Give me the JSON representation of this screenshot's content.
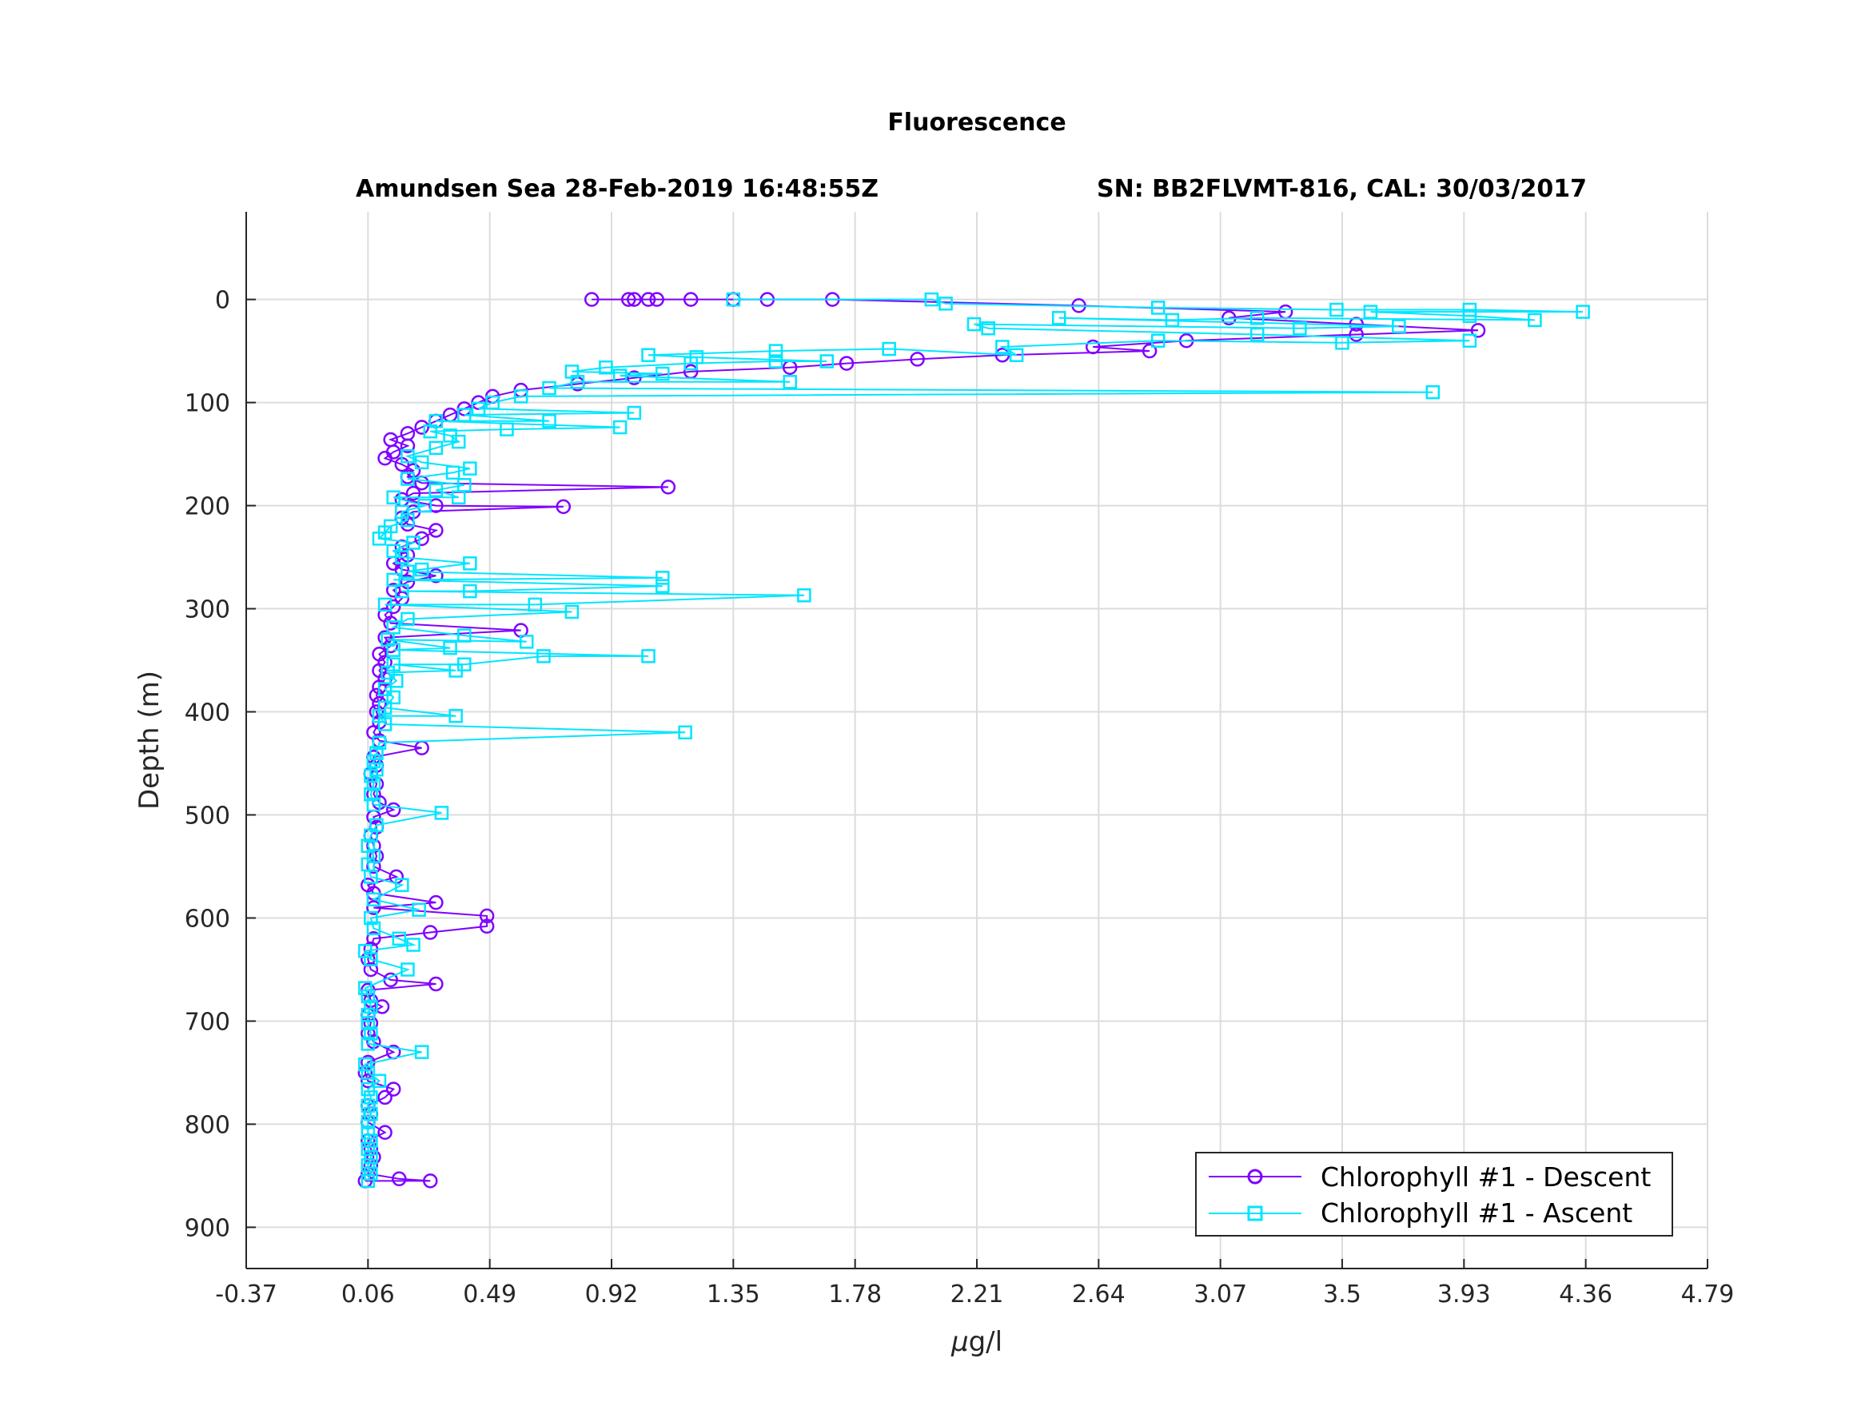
{
  "chart_data": {
    "type": "line",
    "title": "Fluorescence",
    "subtitle_left": "Amundsen Sea 28-Feb-2019 16:48:55Z",
    "subtitle_right": "SN: BB2FLVMT-816, CAL: 30/03/2017",
    "xlabel_prefix": "μ",
    "xlabel_rest": "g/l",
    "ylabel": "Depth (m)",
    "xlim": [
      -0.37,
      4.79
    ],
    "ylim": [
      -85,
      940
    ],
    "y_reversed": true,
    "x_ticks": [
      "-0.37",
      "0.06",
      "0.49",
      "0.92",
      "1.35",
      "1.78",
      "2.21",
      "2.64",
      "3.07",
      "3.5",
      "3.93",
      "4.36",
      "4.79"
    ],
    "y_ticks": [
      "0",
      "100",
      "200",
      "300",
      "400",
      "500",
      "600",
      "700",
      "800",
      "900"
    ],
    "grid": true,
    "legend_position": "bottom-right",
    "series": [
      {
        "name": "Chlorophyll #1 - Descent",
        "color": "#8000ff",
        "marker": "circle",
        "points": [
          [
            0.85,
            0
          ],
          [
            0.98,
            0
          ],
          [
            1.0,
            0
          ],
          [
            1.05,
            0
          ],
          [
            1.08,
            0
          ],
          [
            1.2,
            0
          ],
          [
            1.35,
            0
          ],
          [
            1.47,
            0
          ],
          [
            1.7,
            0
          ],
          [
            2.57,
            6
          ],
          [
            3.3,
            12
          ],
          [
            3.1,
            18
          ],
          [
            3.55,
            24
          ],
          [
            3.98,
            30
          ],
          [
            3.55,
            34
          ],
          [
            2.95,
            40
          ],
          [
            2.62,
            46
          ],
          [
            2.82,
            50
          ],
          [
            2.3,
            54
          ],
          [
            2.0,
            58
          ],
          [
            1.75,
            62
          ],
          [
            1.55,
            66
          ],
          [
            1.2,
            70
          ],
          [
            1.0,
            76
          ],
          [
            0.8,
            82
          ],
          [
            0.6,
            88
          ],
          [
            0.5,
            94
          ],
          [
            0.45,
            100
          ],
          [
            0.4,
            106
          ],
          [
            0.35,
            112
          ],
          [
            0.3,
            118
          ],
          [
            0.25,
            124
          ],
          [
            0.2,
            130
          ],
          [
            0.14,
            136
          ],
          [
            0.2,
            142
          ],
          [
            0.15,
            148
          ],
          [
            0.12,
            154
          ],
          [
            0.18,
            160
          ],
          [
            0.22,
            166
          ],
          [
            0.2,
            172
          ],
          [
            0.25,
            178
          ],
          [
            1.12,
            182
          ],
          [
            0.22,
            188
          ],
          [
            0.18,
            194
          ],
          [
            0.3,
            200
          ],
          [
            0.75,
            201
          ],
          [
            0.22,
            206
          ],
          [
            0.18,
            212
          ],
          [
            0.2,
            218
          ],
          [
            0.3,
            224
          ],
          [
            0.25,
            232
          ],
          [
            0.18,
            240
          ],
          [
            0.2,
            248
          ],
          [
            0.15,
            256
          ],
          [
            0.18,
            262
          ],
          [
            0.3,
            268
          ],
          [
            0.2,
            274
          ],
          [
            0.15,
            282
          ],
          [
            0.18,
            290
          ],
          [
            0.15,
            298
          ],
          [
            0.12,
            306
          ],
          [
            0.14,
            314
          ],
          [
            0.6,
            321
          ],
          [
            0.12,
            328
          ],
          [
            0.14,
            336
          ],
          [
            0.1,
            344
          ],
          [
            0.12,
            352
          ],
          [
            0.1,
            360
          ],
          [
            0.12,
            368
          ],
          [
            0.1,
            376
          ],
          [
            0.09,
            384
          ],
          [
            0.1,
            392
          ],
          [
            0.09,
            400
          ],
          [
            0.1,
            410
          ],
          [
            0.08,
            420
          ],
          [
            0.1,
            428
          ],
          [
            0.25,
            435
          ],
          [
            0.08,
            444
          ],
          [
            0.09,
            452
          ],
          [
            0.07,
            460
          ],
          [
            0.09,
            470
          ],
          [
            0.08,
            480
          ],
          [
            0.1,
            488
          ],
          [
            0.15,
            495
          ],
          [
            0.08,
            502
          ],
          [
            0.09,
            512
          ],
          [
            0.07,
            520
          ],
          [
            0.08,
            530
          ],
          [
            0.09,
            540
          ],
          [
            0.08,
            550
          ],
          [
            0.16,
            560
          ],
          [
            0.06,
            568
          ],
          [
            0.08,
            576
          ],
          [
            0.3,
            585
          ],
          [
            0.08,
            590
          ],
          [
            0.48,
            598
          ],
          [
            0.48,
            608
          ],
          [
            0.28,
            614
          ],
          [
            0.08,
            620
          ],
          [
            0.07,
            630
          ],
          [
            0.06,
            640
          ],
          [
            0.07,
            650
          ],
          [
            0.14,
            660
          ],
          [
            0.3,
            664
          ],
          [
            0.06,
            670
          ],
          [
            0.07,
            680
          ],
          [
            0.11,
            686
          ],
          [
            0.06,
            694
          ],
          [
            0.07,
            702
          ],
          [
            0.06,
            712
          ],
          [
            0.08,
            720
          ],
          [
            0.15,
            730
          ],
          [
            0.06,
            740
          ],
          [
            0.05,
            750
          ],
          [
            0.06,
            758
          ],
          [
            0.15,
            766
          ],
          [
            0.12,
            774
          ],
          [
            0.06,
            782
          ],
          [
            0.07,
            790
          ],
          [
            0.06,
            798
          ],
          [
            0.12,
            808
          ],
          [
            0.06,
            816
          ],
          [
            0.07,
            824
          ],
          [
            0.08,
            832
          ],
          [
            0.07,
            840
          ],
          [
            0.06,
            848
          ],
          [
            0.17,
            853
          ],
          [
            0.28,
            855
          ],
          [
            0.05,
            855
          ]
        ]
      },
      {
        "name": "Chlorophyll #1 - Ascent",
        "color": "#00e5ff",
        "marker": "square",
        "points": [
          [
            0.06,
            855
          ],
          [
            0.07,
            848
          ],
          [
            0.06,
            840
          ],
          [
            0.07,
            832
          ],
          [
            0.06,
            824
          ],
          [
            0.07,
            816
          ],
          [
            0.06,
            808
          ],
          [
            0.06,
            798
          ],
          [
            0.07,
            790
          ],
          [
            0.06,
            782
          ],
          [
            0.07,
            774
          ],
          [
            0.06,
            766
          ],
          [
            0.1,
            758
          ],
          [
            0.06,
            750
          ],
          [
            0.05,
            742
          ],
          [
            0.25,
            730
          ],
          [
            0.06,
            722
          ],
          [
            0.07,
            712
          ],
          [
            0.06,
            702
          ],
          [
            0.06,
            694
          ],
          [
            0.07,
            686
          ],
          [
            0.06,
            676
          ],
          [
            0.05,
            668
          ],
          [
            0.2,
            650
          ],
          [
            0.07,
            640
          ],
          [
            0.05,
            632
          ],
          [
            0.22,
            626
          ],
          [
            0.17,
            620
          ],
          [
            0.08,
            610
          ],
          [
            0.07,
            600
          ],
          [
            0.24,
            592
          ],
          [
            0.08,
            582
          ],
          [
            0.18,
            568
          ],
          [
            0.07,
            560
          ],
          [
            0.06,
            548
          ],
          [
            0.08,
            540
          ],
          [
            0.06,
            530
          ],
          [
            0.07,
            520
          ],
          [
            0.09,
            510
          ],
          [
            0.32,
            498
          ],
          [
            0.08,
            490
          ],
          [
            0.07,
            480
          ],
          [
            0.08,
            470
          ],
          [
            0.07,
            462
          ],
          [
            0.09,
            456
          ],
          [
            0.08,
            448
          ],
          [
            0.09,
            440
          ],
          [
            0.1,
            430
          ],
          [
            1.18,
            420
          ],
          [
            0.12,
            412
          ],
          [
            0.1,
            404
          ],
          [
            0.37,
            404
          ],
          [
            0.12,
            396
          ],
          [
            0.15,
            386
          ],
          [
            0.12,
            378
          ],
          [
            0.16,
            370
          ],
          [
            0.13,
            362
          ],
          [
            0.37,
            360
          ],
          [
            0.15,
            354
          ],
          [
            0.4,
            354
          ],
          [
            0.68,
            346
          ],
          [
            1.05,
            346
          ],
          [
            0.15,
            340
          ],
          [
            0.35,
            338
          ],
          [
            0.13,
            330
          ],
          [
            0.62,
            332
          ],
          [
            0.4,
            326
          ],
          [
            0.15,
            318
          ],
          [
            0.2,
            310
          ],
          [
            0.78,
            303
          ],
          [
            0.12,
            296
          ],
          [
            0.65,
            296
          ],
          [
            1.6,
            287
          ],
          [
            0.18,
            283
          ],
          [
            0.42,
            283
          ],
          [
            1.1,
            278
          ],
          [
            0.15,
            272
          ],
          [
            1.1,
            270
          ],
          [
            0.2,
            264
          ],
          [
            0.25,
            262
          ],
          [
            0.42,
            256
          ],
          [
            0.18,
            250
          ],
          [
            0.15,
            244
          ],
          [
            0.22,
            236
          ],
          [
            0.1,
            232
          ],
          [
            0.12,
            226
          ],
          [
            0.14,
            220
          ],
          [
            0.2,
            214
          ],
          [
            0.18,
            206
          ],
          [
            0.26,
            200
          ],
          [
            0.15,
            192
          ],
          [
            0.38,
            192
          ],
          [
            0.3,
            185
          ],
          [
            0.4,
            180
          ],
          [
            0.2,
            174
          ],
          [
            0.36,
            168
          ],
          [
            0.42,
            164
          ],
          [
            0.25,
            158
          ],
          [
            0.2,
            152
          ],
          [
            0.3,
            144
          ],
          [
            0.38,
            138
          ],
          [
            0.35,
            132
          ],
          [
            0.28,
            128
          ],
          [
            0.55,
            126
          ],
          [
            0.95,
            124
          ],
          [
            0.3,
            118
          ],
          [
            0.7,
            118
          ],
          [
            0.4,
            112
          ],
          [
            1.0,
            110
          ],
          [
            0.45,
            106
          ],
          [
            0.5,
            100
          ],
          [
            0.6,
            94
          ],
          [
            3.82,
            90
          ],
          [
            0.7,
            86
          ],
          [
            0.8,
            80
          ],
          [
            1.55,
            80
          ],
          [
            0.95,
            74
          ],
          [
            1.1,
            72
          ],
          [
            0.78,
            70
          ],
          [
            0.9,
            66
          ],
          [
            1.2,
            62
          ],
          [
            1.5,
            60
          ],
          [
            1.68,
            60
          ],
          [
            1.22,
            56
          ],
          [
            1.05,
            54
          ],
          [
            1.5,
            50
          ],
          [
            1.9,
            48
          ],
          [
            2.35,
            54
          ],
          [
            2.3,
            46
          ],
          [
            2.85,
            40
          ],
          [
            3.5,
            42
          ],
          [
            3.95,
            40
          ],
          [
            3.2,
            34
          ],
          [
            2.25,
            28
          ],
          [
            2.2,
            24
          ],
          [
            3.35,
            28
          ],
          [
            3.7,
            26
          ],
          [
            2.5,
            18
          ],
          [
            2.9,
            20
          ],
          [
            3.2,
            18
          ],
          [
            4.18,
            20
          ],
          [
            3.95,
            16
          ],
          [
            3.6,
            12
          ],
          [
            4.35,
            12
          ],
          [
            3.95,
            10
          ],
          [
            3.48,
            10
          ],
          [
            2.85,
            8
          ],
          [
            2.1,
            4
          ],
          [
            2.05,
            0
          ],
          [
            1.35,
            0
          ]
        ]
      }
    ]
  }
}
